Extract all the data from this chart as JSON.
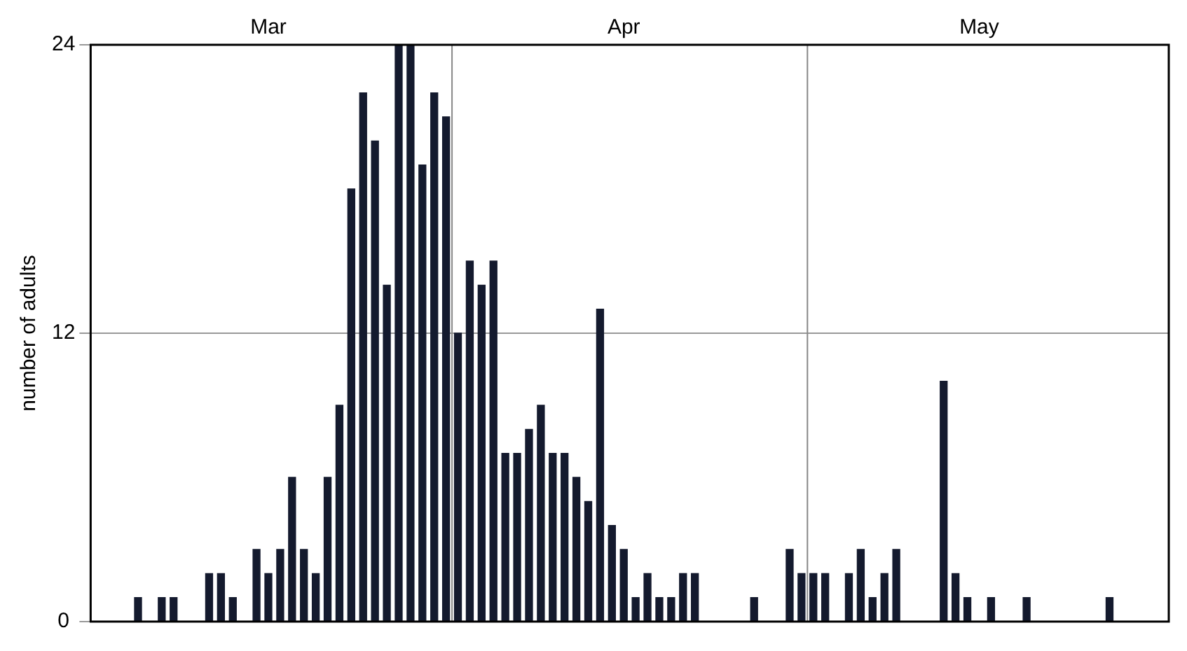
{
  "chart_data": {
    "type": "bar",
    "ylabel": "number of adults",
    "x": [
      "--03-05",
      "--03-07",
      "--03-08",
      "--03-11",
      "--03-12",
      "--03-13",
      "--03-15",
      "--03-16",
      "--03-17",
      "--03-18",
      "--03-19",
      "--03-20",
      "--03-21",
      "--03-22",
      "--03-23",
      "--03-24",
      "--03-25",
      "--03-26",
      "--03-27",
      "--03-28",
      "--03-29",
      "--03-30",
      "--03-31",
      "--04-01",
      "--04-02",
      "--04-03",
      "--04-04",
      "--04-05",
      "--04-06",
      "--04-07",
      "--04-08",
      "--04-09",
      "--04-10",
      "--04-11",
      "--04-12",
      "--04-13",
      "--04-14",
      "--04-15",
      "--04-16",
      "--04-17",
      "--04-18",
      "--04-19",
      "--04-20",
      "--04-21",
      "--04-26",
      "--04-29",
      "--04-30",
      "--05-01",
      "--05-02",
      "--05-04",
      "--05-05",
      "--05-06",
      "--05-07",
      "--05-08",
      "--05-12",
      "--05-13",
      "--05-14",
      "--05-16",
      "--05-19",
      "--05-26"
    ],
    "values": [
      1,
      1,
      1,
      2,
      2,
      1,
      3,
      2,
      3,
      6,
      3,
      2,
      6,
      9,
      18,
      22,
      20,
      14,
      24,
      24,
      19,
      22,
      21,
      12,
      15,
      14,
      15,
      7,
      7,
      8,
      9,
      7,
      7,
      6,
      5,
      13,
      4,
      3,
      1,
      2,
      1,
      1,
      2,
      2,
      1,
      3,
      2,
      2,
      2,
      2,
      3,
      1,
      2,
      3,
      10,
      2,
      1,
      1,
      1,
      1
    ],
    "color": "#141a2e",
    "xlim": [
      "--03-01",
      "--05-31"
    ],
    "xticks": [
      {
        "value": "--03-16",
        "label": "Mar"
      },
      {
        "value": "--04-15",
        "label": "Apr"
      },
      {
        "value": "--05-15",
        "label": "May"
      }
    ],
    "ylim": [
      0,
      24
    ],
    "yticks": [
      0,
      12,
      24
    ],
    "grid": "y",
    "ref_lines": [
      {
        "axis": "x",
        "value": "--03-31T12:00",
        "color": "#888888"
      },
      {
        "axis": "x",
        "value": "--04-30T12:00",
        "color": "#888888"
      }
    ]
  }
}
